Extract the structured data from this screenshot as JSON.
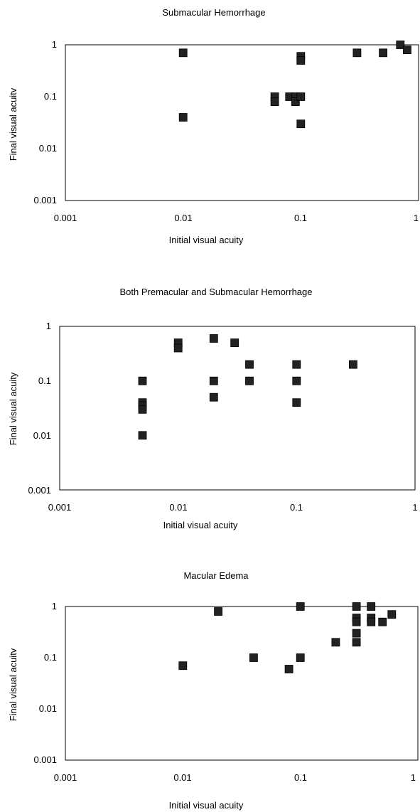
{
  "chart_data": [
    {
      "type": "scatter",
      "title": "Submacular Hemorrhage",
      "xlabel": "Initial visual acuity",
      "ylabel": "Final visual acuitv",
      "xscale": "log",
      "yscale": "log",
      "xlim": [
        0.001,
        1
      ],
      "ylim": [
        0.001,
        1
      ],
      "xticks": [
        "0.001",
        "0.01",
        "0.1",
        "1"
      ],
      "yticks": [
        "0.001",
        "0.01",
        "0.1",
        "1"
      ],
      "grid": false,
      "legend": "none",
      "marker_color": "#222222",
      "points": [
        {
          "x": 0.01,
          "y": 0.7
        },
        {
          "x": 0.01,
          "y": 0.04
        },
        {
          "x": 0.06,
          "y": 0.1
        },
        {
          "x": 0.06,
          "y": 0.08
        },
        {
          "x": 0.08,
          "y": 0.1
        },
        {
          "x": 0.09,
          "y": 0.1
        },
        {
          "x": 0.09,
          "y": 0.08
        },
        {
          "x": 0.1,
          "y": 0.1
        },
        {
          "x": 0.1,
          "y": 0.6
        },
        {
          "x": 0.1,
          "y": 0.5
        },
        {
          "x": 0.1,
          "y": 0.03
        },
        {
          "x": 0.3,
          "y": 0.7
        },
        {
          "x": 0.5,
          "y": 0.7
        },
        {
          "x": 0.7,
          "y": 1.0
        },
        {
          "x": 0.8,
          "y": 0.8
        }
      ]
    },
    {
      "type": "scatter",
      "title": "Both Premacular and Submacular Hemorrhage",
      "xlabel": "Initial visual acuity",
      "ylabel": "Final visual acuity",
      "xscale": "log",
      "yscale": "log",
      "xlim": [
        0.001,
        1
      ],
      "ylim": [
        0.001,
        1
      ],
      "xticks": [
        "0.001",
        "0.01",
        "0.1",
        "1"
      ],
      "yticks": [
        "0.001",
        "0.01",
        "0.1",
        "1"
      ],
      "grid": false,
      "legend": "none",
      "marker_color": "#222222",
      "points": [
        {
          "x": 0.005,
          "y": 0.1
        },
        {
          "x": 0.005,
          "y": 0.04
        },
        {
          "x": 0.005,
          "y": 0.035
        },
        {
          "x": 0.005,
          "y": 0.03
        },
        {
          "x": 0.005,
          "y": 0.01
        },
        {
          "x": 0.01,
          "y": 0.5
        },
        {
          "x": 0.01,
          "y": 0.4
        },
        {
          "x": 0.02,
          "y": 0.6
        },
        {
          "x": 0.02,
          "y": 0.1
        },
        {
          "x": 0.02,
          "y": 0.05
        },
        {
          "x": 0.03,
          "y": 0.5
        },
        {
          "x": 0.04,
          "y": 0.2
        },
        {
          "x": 0.04,
          "y": 0.1
        },
        {
          "x": 0.1,
          "y": 0.2
        },
        {
          "x": 0.1,
          "y": 0.1
        },
        {
          "x": 0.1,
          "y": 0.04
        },
        {
          "x": 0.3,
          "y": 0.2
        }
      ]
    },
    {
      "type": "scatter",
      "title": "Macular Edema",
      "xlabel": "Initial visual acuity",
      "ylabel": "Final visual acuitv",
      "xscale": "log",
      "yscale": "log",
      "xlim": [
        0.001,
        1
      ],
      "ylim": [
        0.001,
        1
      ],
      "xticks": [
        "0.001",
        "0.01",
        "0.1",
        "1"
      ],
      "yticks": [
        "0.001",
        "0.01",
        "0.1",
        "1"
      ],
      "grid": false,
      "legend": "none",
      "marker_color": "#222222",
      "points": [
        {
          "x": 0.01,
          "y": 0.07
        },
        {
          "x": 0.02,
          "y": 0.8
        },
        {
          "x": 0.04,
          "y": 0.1
        },
        {
          "x": 0.08,
          "y": 0.06
        },
        {
          "x": 0.1,
          "y": 1.0
        },
        {
          "x": 0.1,
          "y": 0.1
        },
        {
          "x": 0.2,
          "y": 0.2
        },
        {
          "x": 0.3,
          "y": 1.0
        },
        {
          "x": 0.3,
          "y": 0.6
        },
        {
          "x": 0.3,
          "y": 0.5
        },
        {
          "x": 0.3,
          "y": 0.3
        },
        {
          "x": 0.3,
          "y": 0.2
        },
        {
          "x": 0.4,
          "y": 1.0
        },
        {
          "x": 0.4,
          "y": 0.6
        },
        {
          "x": 0.4,
          "y": 0.5
        },
        {
          "x": 0.5,
          "y": 0.5
        },
        {
          "x": 0.6,
          "y": 0.7
        }
      ]
    }
  ]
}
